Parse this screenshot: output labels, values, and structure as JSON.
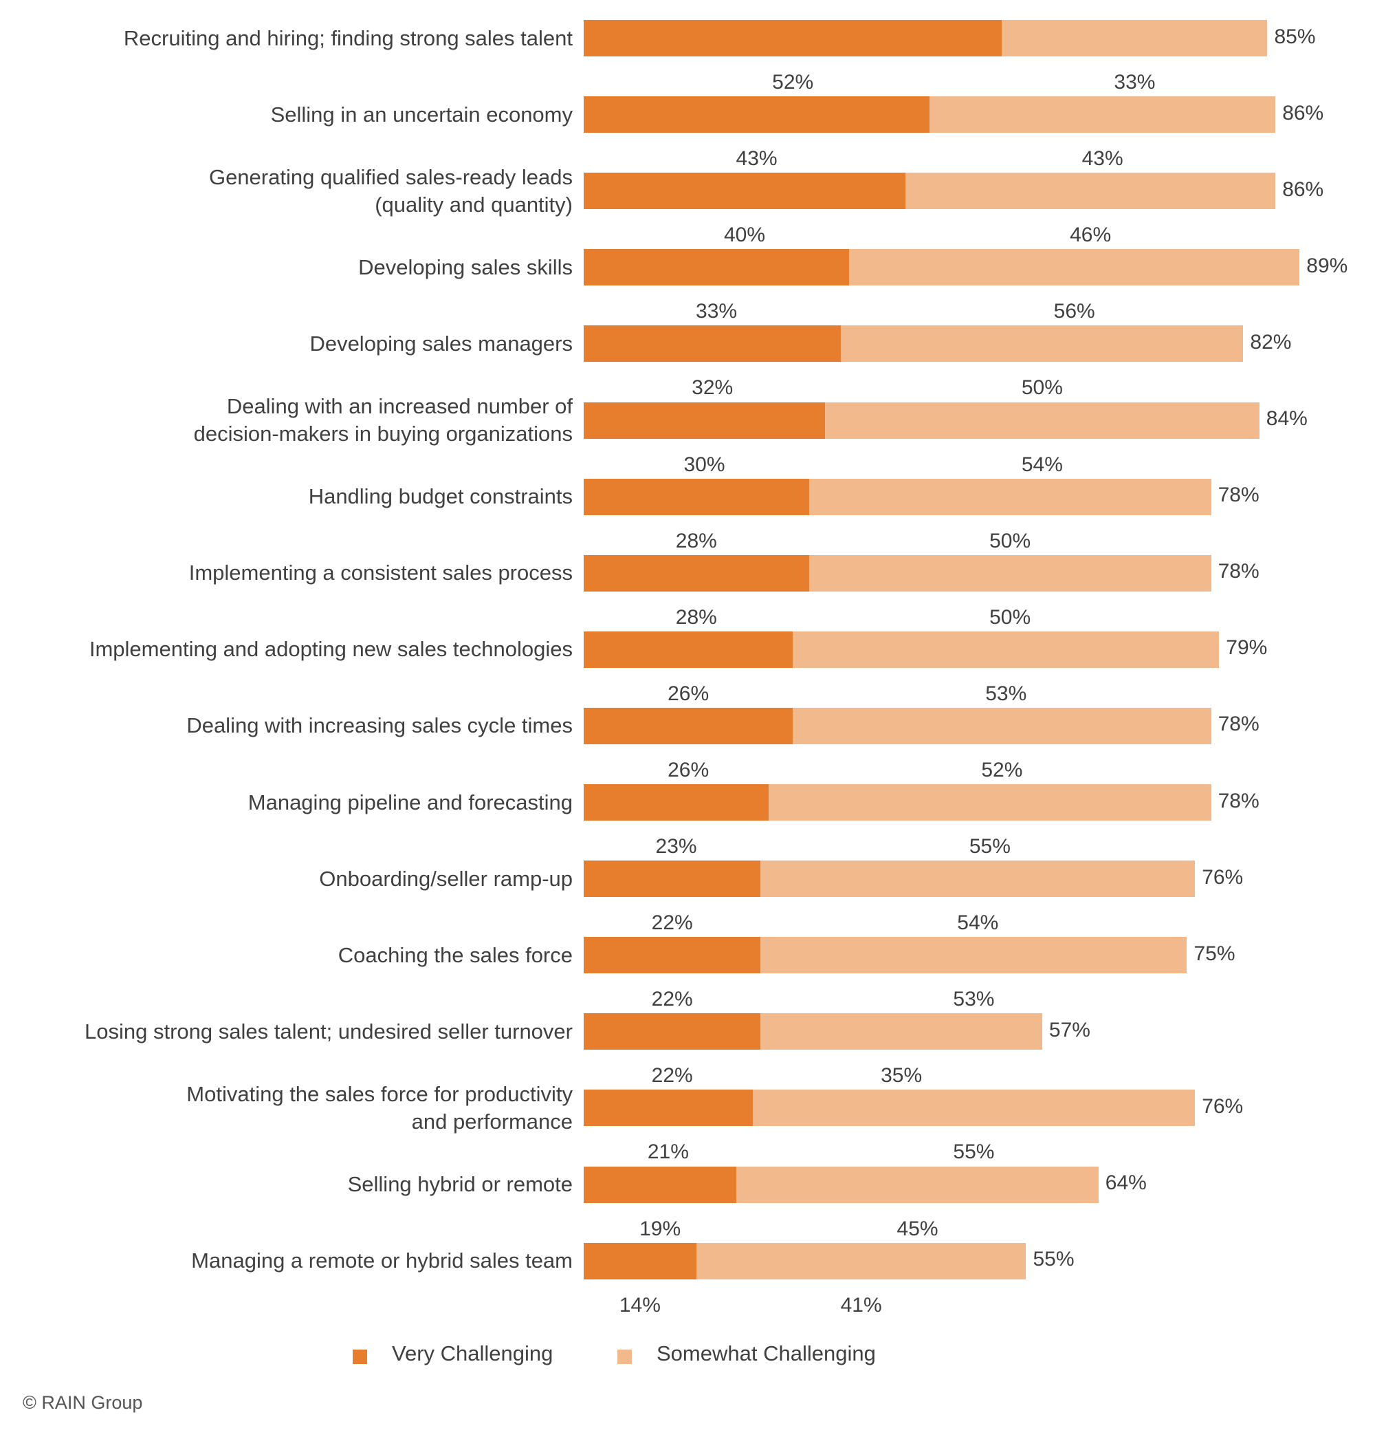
{
  "chart_data": {
    "type": "bar",
    "orientation": "horizontal",
    "stacked": true,
    "categories": [
      "Recruiting and hiring; finding strong sales talent",
      "Selling in an uncertain economy",
      "Generating qualified sales-ready leads\n(quality and quantity)",
      "Developing sales skills",
      "Developing sales managers",
      "Dealing with an increased number of\ndecision-makers in buying organizations",
      "Handling budget constraints",
      "Implementing a consistent sales process",
      "Implementing and adopting new sales technologies",
      "Dealing with increasing sales cycle times",
      "Managing pipeline and forecasting",
      "Onboarding/seller ramp-up",
      "Coaching the sales force",
      "Losing strong sales talent; undesired seller turnover",
      "Motivating the sales force for productivity\nand performance",
      "Selling hybrid or remote",
      "Managing a remote or hybrid sales team"
    ],
    "series": [
      {
        "name": "Very Challenging",
        "color": "#E67E2E",
        "values": [
          52,
          43,
          40,
          33,
          32,
          30,
          28,
          28,
          26,
          26,
          23,
          22,
          22,
          22,
          21,
          19,
          14
        ]
      },
      {
        "name": "Somewhat Challenging",
        "color": "#F2B98D",
        "values": [
          33,
          43,
          46,
          56,
          50,
          54,
          50,
          50,
          53,
          52,
          55,
          54,
          53,
          35,
          55,
          45,
          41
        ]
      }
    ],
    "totals": [
      85,
      86,
      86,
      89,
      82,
      84,
      78,
      78,
      79,
      78,
      78,
      76,
      75,
      57,
      76,
      64,
      55
    ],
    "value_suffix": "%",
    "xlim": [
      0,
      100
    ],
    "grid": false,
    "legend_position": "bottom"
  },
  "footer": {
    "copyright": "© RAIN Group"
  }
}
